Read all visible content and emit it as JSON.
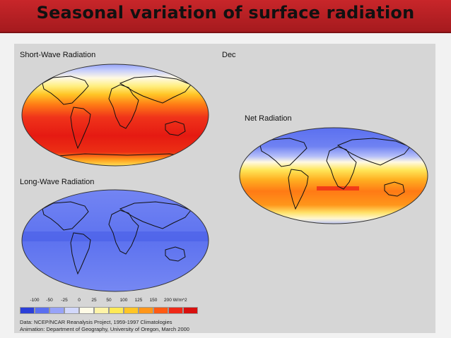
{
  "title": "Seasonal variation of surface radiation",
  "figure": {
    "month": "Dec",
    "panels": {
      "short_wave": "Short-Wave Radiation",
      "long_wave": "Long-Wave Radiation",
      "net": "Net Radiation"
    },
    "legend": {
      "ticks": [
        "-100",
        "-50",
        "-25",
        "0",
        "25",
        "50",
        "100",
        "125",
        "150",
        "200 W/m^2"
      ],
      "colors": [
        "#2b3fd8",
        "#5a6ff0",
        "#97a3f8",
        "#d2d8fb",
        "#fffbe6",
        "#fff4a8",
        "#ffea55",
        "#ffc526",
        "#ff961a",
        "#ff5a14",
        "#ef2817",
        "#d8100f"
      ]
    },
    "credit_line1": "Data:  NCEP/NCAR Reanalysis Project, 1959-1997 Climatologies",
    "credit_line2": "Animation:  Department of Geography, University of Oregon, March 2000"
  }
}
